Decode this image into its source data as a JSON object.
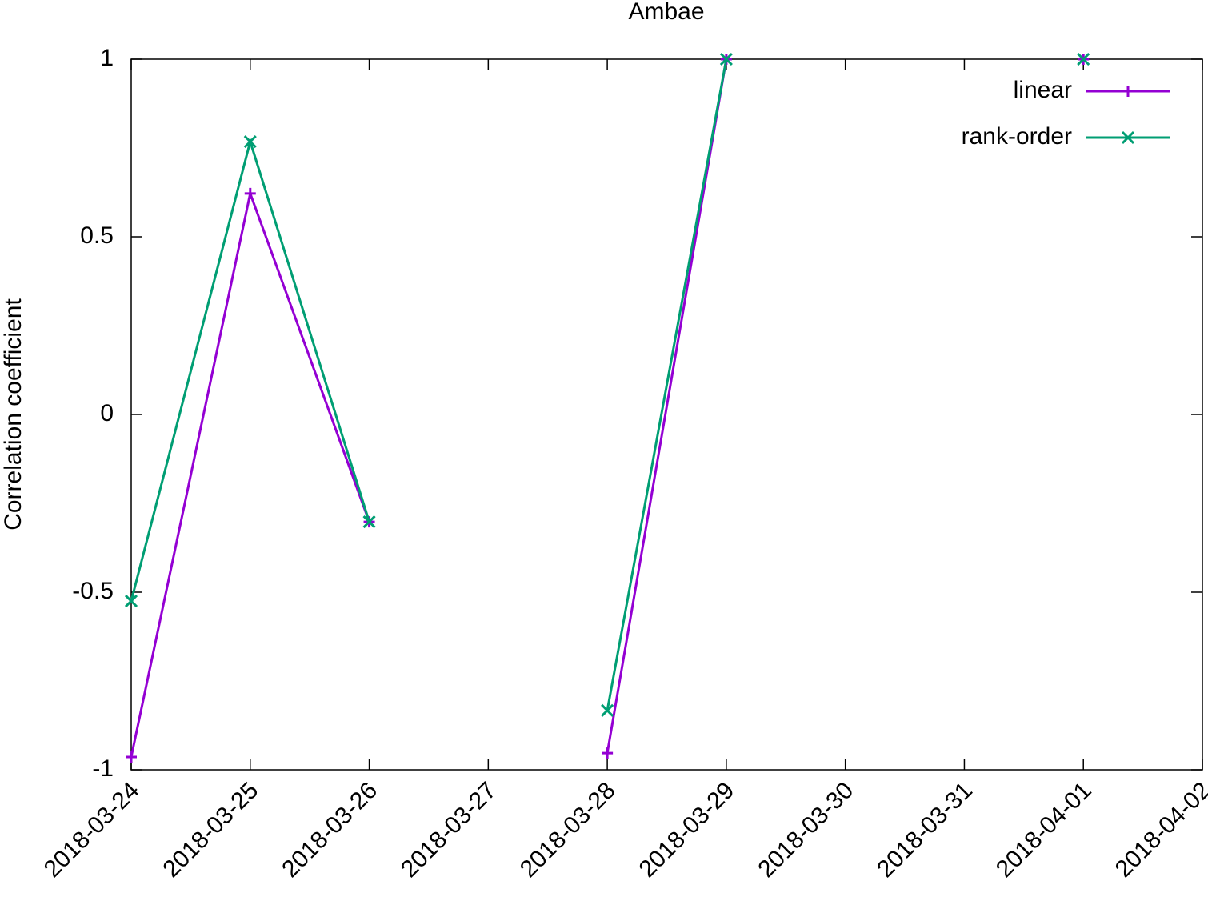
{
  "chart_data": {
    "type": "line",
    "title": "Ambae",
    "y_label": "Correlation coefficient",
    "x": [
      "2018-03-24",
      "2018-03-25",
      "2018-03-26",
      "2018-03-27",
      "2018-03-28",
      "2018-03-29",
      "2018-03-30",
      "2018-03-31",
      "2018-04-01"
    ],
    "series": [
      {
        "name": "linear",
        "color": "#9400d3",
        "marker": "plus",
        "values": [
          -0.964,
          0.622,
          -0.302,
          null,
          -0.953,
          1,
          null,
          null,
          1
        ]
      },
      {
        "name": "rank-order",
        "color": "#009e73",
        "marker": "cross",
        "values": [
          -0.525,
          0.768,
          -0.302,
          null,
          -0.833,
          1,
          null,
          null,
          1
        ]
      }
    ],
    "xlim": [
      "2018-03-24",
      "2018-04-02"
    ],
    "xticks": [
      "2018-03-24",
      "2018-03-25",
      "2018-03-26",
      "2018-03-27",
      "2018-03-28",
      "2018-03-29",
      "2018-03-30",
      "2018-03-31",
      "2018-04-01",
      "2018-04-02"
    ],
    "ylim": [
      -1,
      1
    ],
    "yticks": [
      -1,
      -0.5,
      0,
      0.5,
      1
    ],
    "legend": "top right"
  }
}
